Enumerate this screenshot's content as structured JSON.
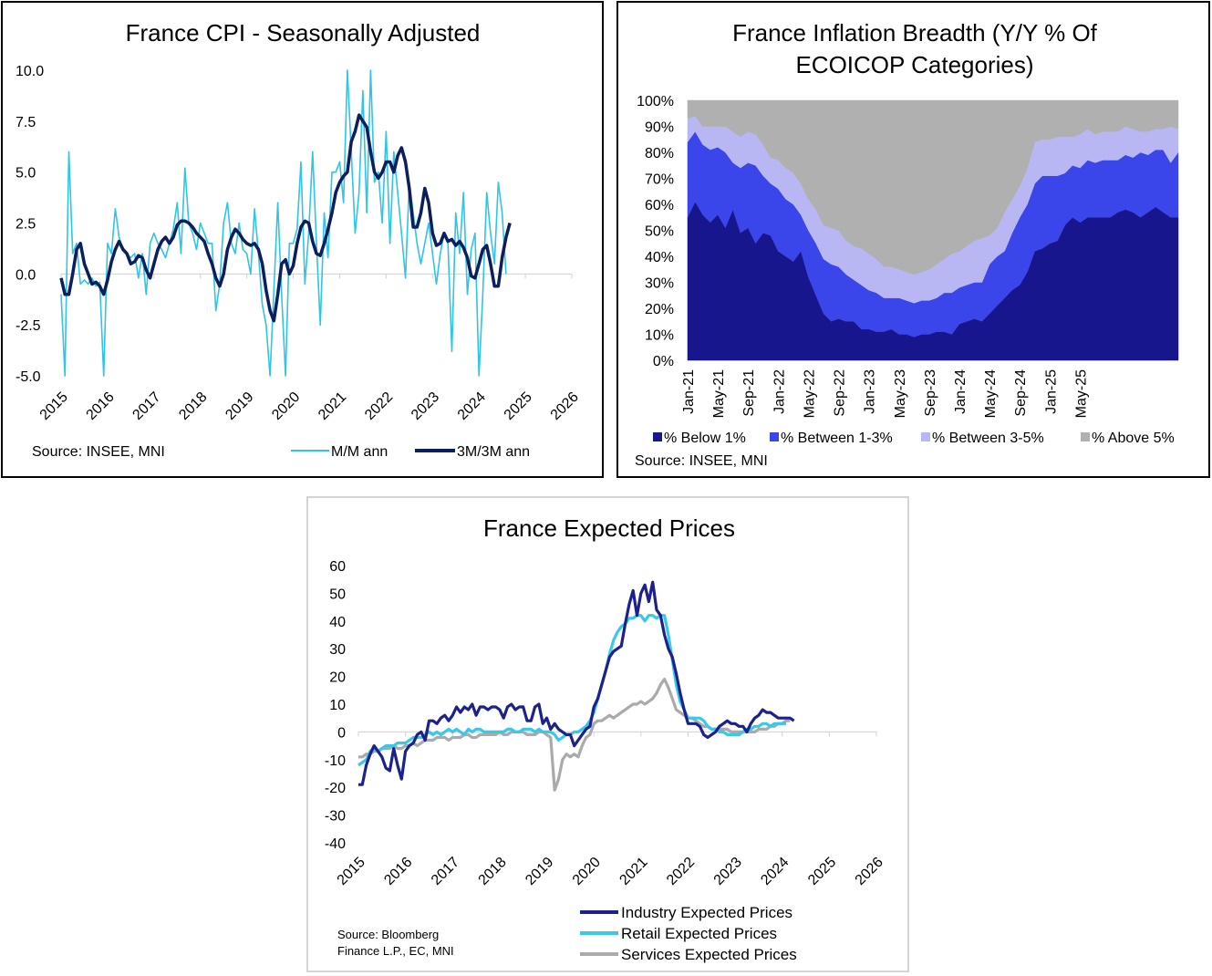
{
  "colors": {
    "mm": "#2ec5e8",
    "mm3": "#0b1f5e",
    "industry": "#1c228a",
    "retail": "#38c8ea",
    "services": "#aaaaaa",
    "below1": "#17168c",
    "between13": "#3b46ea",
    "between35": "#b9b7f3",
    "above5": "#b0b0b0"
  },
  "chart_data": [
    {
      "type": "line",
      "title": "France CPI - Seasonally Adjusted",
      "source": "Source: INSEE, MNI",
      "ylim": [
        -5.0,
        10.0
      ],
      "y_ticks": [
        "10.0",
        "7.5",
        "5.0",
        "2.5",
        "0.0",
        "-2.5",
        "-5.0"
      ],
      "x_ticks": [
        "2015",
        "2016",
        "2017",
        "2018",
        "2019",
        "2020",
        "2021",
        "2022",
        "2023",
        "2024",
        "2025",
        "2026"
      ],
      "x_start": "2015-01",
      "series": [
        {
          "name": "M/M ann",
          "values": [
            -1.0,
            -5.0,
            6.0,
            1.0,
            1.5,
            -0.5,
            -0.3,
            -0.5,
            -0.2,
            -0.6,
            -0.4,
            -5.0,
            1.5,
            1.0,
            3.2,
            1.8,
            1.2,
            1.0,
            0.8,
            1.0,
            -0.2,
            1.0,
            -1.0,
            1.5,
            2.0,
            1.5,
            1.2,
            0.8,
            1.5,
            2.2,
            3.5,
            1.0,
            5.2,
            2.5,
            2.0,
            1.2,
            2.5,
            2.0,
            1.5,
            1.5,
            -1.8,
            -0.5,
            2.5,
            3.5,
            1.5,
            1.0,
            2.5,
            1.2,
            1.0,
            0.0,
            3.2,
            1.0,
            -1.5,
            -2.5,
            -5.0,
            -0.8,
            3.5,
            -1.0,
            -5.0,
            1.5,
            1.5,
            2.2,
            5.5,
            -0.5,
            2.0,
            6.0,
            1.5,
            -2.5,
            3.0,
            0.8,
            5.0,
            5.0,
            5.5,
            3.5,
            10.0,
            6.0,
            2.0,
            4.0,
            9.0,
            3.0,
            10.0,
            4.5,
            5.0,
            2.5,
            7.0,
            1.5,
            6.0,
            4.0,
            2.0,
            -0.2,
            4.5,
            3.0,
            1.5,
            0.5,
            1.5,
            2.5,
            1.0,
            -0.5,
            1.0,
            2.0,
            1.5,
            -3.8,
            3.0,
            1.0,
            4.0,
            -1.0,
            1.2,
            2.0,
            -5.0,
            -1.0,
            4.0,
            2.0,
            0.5,
            4.5,
            3.0,
            0.0
          ]
        },
        {
          "name": "3M/3M ann",
          "values": [
            -0.2,
            -1.0,
            -1.0,
            0.0,
            1.2,
            1.5,
            0.5,
            0.0,
            -0.5,
            -0.4,
            -0.6,
            -1.0,
            -0.3,
            0.6,
            1.2,
            1.6,
            1.2,
            1.0,
            0.5,
            0.6,
            0.9,
            0.8,
            0.2,
            -0.2,
            0.5,
            1.2,
            1.6,
            1.8,
            1.5,
            1.8,
            2.4,
            2.6,
            2.6,
            2.5,
            2.3,
            2.0,
            1.8,
            1.6,
            1.0,
            0.5,
            -0.2,
            -0.6,
            0.0,
            1.2,
            1.8,
            2.2,
            2.0,
            1.7,
            1.5,
            1.4,
            1.5,
            1.2,
            0.5,
            -0.8,
            -1.8,
            -2.3,
            -1.0,
            0.5,
            0.7,
            0.0,
            0.4,
            1.5,
            2.3,
            2.6,
            2.5,
            1.6,
            1.0,
            0.9,
            1.5,
            2.2,
            3.0,
            4.0,
            4.5,
            4.8,
            5.0,
            6.5,
            7.0,
            7.8,
            7.5,
            7.2,
            6.0,
            5.0,
            4.7,
            5.0,
            5.5,
            5.5,
            5.0,
            5.8,
            6.2,
            5.5,
            4.2,
            2.3,
            2.3,
            3.0,
            4.2,
            3.5,
            2.0,
            1.4,
            1.5,
            2.0,
            1.6,
            1.7,
            1.4,
            1.6,
            1.3,
            0.8,
            -0.1,
            -0.2,
            0.5,
            1.2,
            1.4,
            0.5,
            -0.6,
            -0.6,
            0.8,
            1.8,
            2.5
          ]
        }
      ]
    },
    {
      "type": "area",
      "title": "France Inflation Breadth (Y/Y % Of ECOICOP Categories)",
      "source": "Source: INSEE, MNI",
      "ylim": [
        0,
        100
      ],
      "y_ticks": [
        "100%",
        "90%",
        "80%",
        "70%",
        "60%",
        "50%",
        "40%",
        "30%",
        "20%",
        "10%",
        "0%"
      ],
      "x_ticks": [
        "Jan-21",
        "May-21",
        "Sep-21",
        "Jan-22",
        "May-22",
        "Sep-22",
        "Jan-23",
        "May-23",
        "Sep-23",
        "Jan-24",
        "May-24",
        "Sep-24",
        "Jan-25",
        "May-25"
      ],
      "x_start": "2021-01",
      "series": [
        {
          "name": "% Below 1%",
          "values": [
            55,
            61,
            56,
            53,
            56,
            51,
            58,
            49,
            51,
            45,
            49,
            48,
            42,
            40,
            38,
            42,
            32,
            25,
            18,
            15,
            16,
            15,
            15,
            12,
            12,
            11,
            11,
            12,
            10,
            10,
            9,
            10,
            10,
            11,
            11,
            10,
            14,
            15,
            16,
            15,
            18,
            21,
            24,
            27,
            29,
            34,
            42,
            43,
            45,
            46,
            52,
            55,
            53,
            55,
            55,
            55,
            55,
            57,
            58,
            57,
            55,
            57,
            59,
            57,
            55,
            55
          ]
        },
        {
          "name": "% Between 1-3%",
          "values": [
            29,
            27,
            27,
            28,
            26,
            29,
            18,
            25,
            25,
            30,
            22,
            20,
            24,
            22,
            22,
            14,
            18,
            20,
            21,
            22,
            20,
            18,
            16,
            17,
            15,
            15,
            13,
            12,
            14,
            13,
            13,
            13,
            13,
            13,
            15,
            16,
            14,
            14,
            14,
            15,
            19,
            19,
            18,
            22,
            26,
            26,
            26,
            28,
            26,
            25,
            20,
            20,
            21,
            22,
            21,
            22,
            22,
            20,
            21,
            21,
            25,
            22,
            22,
            24,
            21,
            25
          ]
        },
        {
          "name": "% Between 3-5%",
          "values": [
            9,
            6,
            7,
            9,
            8,
            10,
            12,
            12,
            12,
            12,
            12,
            10,
            11,
            12,
            12,
            12,
            12,
            13,
            13,
            14,
            14,
            13,
            13,
            14,
            14,
            13,
            12,
            12,
            11,
            11,
            11,
            11,
            12,
            13,
            13,
            15,
            14,
            15,
            16,
            17,
            11,
            11,
            15,
            13,
            12,
            14,
            16,
            14,
            14,
            15,
            14,
            11,
            13,
            12,
            11,
            11,
            11,
            11,
            11,
            11,
            8,
            9,
            8,
            8,
            14,
            9
          ]
        },
        {
          "name": "% Above 5%",
          "values": [
            7,
            6,
            10,
            10,
            10,
            10,
            12,
            14,
            12,
            13,
            17,
            22,
            23,
            26,
            28,
            32,
            38,
            42,
            48,
            49,
            50,
            54,
            56,
            57,
            59,
            61,
            64,
            64,
            65,
            66,
            67,
            66,
            65,
            63,
            61,
            59,
            58,
            56,
            54,
            53,
            52,
            49,
            43,
            38,
            33,
            26,
            16,
            15,
            15,
            14,
            14,
            14,
            13,
            11,
            13,
            12,
            12,
            12,
            10,
            11,
            12,
            12,
            11,
            11,
            10,
            11
          ]
        }
      ]
    },
    {
      "type": "line",
      "title": "France Expected Prices",
      "source_lines": [
        "Source: Bloomberg",
        "Finance L.P., EC, MNI"
      ],
      "ylim": [
        -40,
        60
      ],
      "y_ticks": [
        "60",
        "50",
        "40",
        "30",
        "20",
        "10",
        "0",
        "-10",
        "-20",
        "-30",
        "-40"
      ],
      "x_ticks": [
        "2015",
        "2016",
        "2017",
        "2018",
        "2019",
        "2020",
        "2021",
        "2022",
        "2023",
        "2024",
        "2025",
        "2026"
      ],
      "x_start": "2015-01",
      "series": [
        {
          "name": "Industry Expected Prices",
          "values": [
            -19,
            -19,
            -12,
            -8,
            -5,
            -7,
            -9,
            -13,
            -14,
            -6,
            -12,
            -17,
            -7,
            -5,
            -4,
            -1,
            0,
            -3,
            4,
            4,
            3,
            5,
            6,
            4,
            6,
            9,
            7,
            9,
            8,
            10,
            6,
            9,
            9,
            8,
            9,
            9,
            8,
            5,
            9,
            10,
            8,
            9,
            9,
            4,
            4,
            9,
            10,
            3,
            5,
            1,
            3,
            1,
            0,
            -1,
            -1,
            -5,
            -3,
            -1,
            1,
            2,
            9,
            12,
            17,
            22,
            27,
            29,
            30,
            31,
            39,
            46,
            51,
            42,
            50,
            53,
            47,
            54,
            44,
            42,
            35,
            30,
            27,
            21,
            14,
            8,
            3,
            3,
            3,
            2,
            -1,
            -2,
            -1,
            0,
            2,
            3,
            4,
            3,
            3,
            2,
            2,
            0,
            3,
            5,
            6,
            8,
            7,
            7,
            6,
            5,
            5,
            5,
            5,
            4
          ]
        },
        {
          "name": "Retail Expected Prices",
          "values": [
            -12,
            -11,
            -10,
            -7,
            -6,
            -7,
            -6,
            -5,
            -5,
            -5,
            -4,
            -4,
            -4,
            -3,
            -2,
            -2,
            -2,
            -1,
            0,
            -1,
            0,
            -1,
            0,
            1,
            0,
            1,
            0,
            -1,
            1,
            0,
            1,
            1,
            0,
            0,
            0,
            0,
            0,
            0,
            1,
            1,
            0,
            0,
            1,
            1,
            1,
            0,
            1,
            0,
            0,
            0,
            -1,
            -3,
            -2,
            -1,
            -1,
            0,
            0,
            1,
            2,
            4,
            7,
            12,
            17,
            22,
            28,
            33,
            36,
            38,
            39,
            41,
            41,
            42,
            42,
            40,
            42,
            42,
            41,
            42,
            42,
            35,
            26,
            17,
            11,
            8,
            5,
            5,
            5,
            5,
            4,
            2,
            1,
            1,
            0,
            0,
            -1,
            -1,
            -1,
            -1,
            0,
            1,
            1,
            2,
            2,
            3,
            3,
            2,
            3,
            3,
            3,
            3
          ]
        },
        {
          "name": "Services Expected Prices",
          "values": [
            -9,
            -9,
            -8,
            -8,
            -7,
            -7,
            -6,
            -6,
            -6,
            -5,
            -6,
            -6,
            -5,
            -5,
            -4,
            -5,
            -4,
            -3,
            -3,
            -3,
            -2,
            -2,
            -2,
            -3,
            -2,
            -2,
            -2,
            -1,
            -1,
            -2,
            -2,
            -1,
            -1,
            -1,
            -1,
            -1,
            0,
            -1,
            -1,
            0,
            0,
            0,
            0,
            -1,
            -1,
            -1,
            0,
            0,
            -1,
            -2,
            -21,
            -17,
            -10,
            -8,
            -9,
            -8,
            -9,
            -5,
            -2,
            -1,
            3,
            4,
            4,
            5,
            6,
            5,
            6,
            7,
            8,
            9,
            10,
            10,
            11,
            10,
            11,
            12,
            14,
            17,
            19,
            16,
            12,
            8,
            7,
            6,
            5,
            5,
            4,
            3,
            2,
            2,
            1,
            1,
            1,
            1,
            1,
            0,
            0,
            0,
            0,
            0,
            0,
            0,
            1,
            1,
            1,
            2,
            2,
            3,
            3,
            4,
            4
          ]
        }
      ]
    }
  ]
}
